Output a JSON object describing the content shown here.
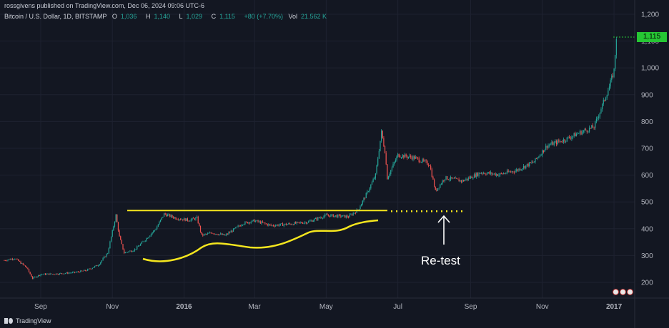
{
  "header": {
    "publisher": "rossgivens published on TradingView.com, Dec 06, 2024 09:06 UTC-6",
    "symbol": "Bitcoin / U.S. Dollar, 1D, BITSTAMP",
    "o_label": "O",
    "o_value": "1,036",
    "h_label": "H",
    "h_value": "1,140",
    "l_label": "L",
    "l_value": "1,029",
    "c_label": "C",
    "c_value": "1,115",
    "change": "+80 (+7.70%)",
    "vol_label": "Vol",
    "vol_value": "21.562 K"
  },
  "branding": {
    "text": "TradingView",
    "icon": "tradingview-logo"
  },
  "colors": {
    "background": "#131722",
    "up": "#26a69a",
    "down": "#ef5350",
    "annotation": "#f5e61e",
    "last_price_bg": "#26c634"
  },
  "chart_data": {
    "type": "candlestick",
    "x_ticks": [
      "Sep",
      "Nov",
      "2016",
      "Mar",
      "May",
      "Jul",
      "Sep",
      "Nov",
      "2017"
    ],
    "y_ticks": [
      "200",
      "300",
      "400",
      "500",
      "600",
      "700",
      "800",
      "900",
      "1,000",
      "1,100",
      "1,200"
    ],
    "ylim": [
      165,
      1215
    ],
    "last_price_label": "1,115",
    "price_path": [
      [
        "2015-08-01",
        282
      ],
      [
        "2015-08-10",
        290
      ],
      [
        "2015-08-20",
        255
      ],
      [
        "2015-08-25",
        215
      ],
      [
        "2015-09-01",
        230
      ],
      [
        "2015-09-15",
        232
      ],
      [
        "2015-09-30",
        237
      ],
      [
        "2015-10-10",
        245
      ],
      [
        "2015-10-20",
        265
      ],
      [
        "2015-10-28",
        310
      ],
      [
        "2015-11-04",
        450
      ],
      [
        "2015-11-07",
        370
      ],
      [
        "2015-11-11",
        310
      ],
      [
        "2015-11-20",
        322
      ],
      [
        "2015-11-28",
        355
      ],
      [
        "2015-12-08",
        400
      ],
      [
        "2015-12-15",
        455
      ],
      [
        "2015-12-25",
        440
      ],
      [
        "2016-01-05",
        432
      ],
      [
        "2016-01-12",
        440
      ],
      [
        "2016-01-16",
        375
      ],
      [
        "2016-01-25",
        385
      ],
      [
        "2016-02-05",
        375
      ],
      [
        "2016-02-20",
        420
      ],
      [
        "2016-03-01",
        430
      ],
      [
        "2016-03-15",
        412
      ],
      [
        "2016-04-01",
        418
      ],
      [
        "2016-04-15",
        425
      ],
      [
        "2016-05-01",
        450
      ],
      [
        "2016-05-20",
        445
      ],
      [
        "2016-05-28",
        470
      ],
      [
        "2016-06-05",
        535
      ],
      [
        "2016-06-12",
        600
      ],
      [
        "2016-06-17",
        760
      ],
      [
        "2016-06-20",
        690
      ],
      [
        "2016-06-22",
        590
      ],
      [
        "2016-07-01",
        675
      ],
      [
        "2016-07-15",
        665
      ],
      [
        "2016-07-28",
        640
      ],
      [
        "2016-08-02",
        540
      ],
      [
        "2016-08-10",
        590
      ],
      [
        "2016-08-25",
        578
      ],
      [
        "2016-09-10",
        610
      ],
      [
        "2016-09-25",
        602
      ],
      [
        "2016-10-10",
        618
      ],
      [
        "2016-10-25",
        650
      ],
      [
        "2016-11-05",
        710
      ],
      [
        "2016-11-20",
        732
      ],
      [
        "2016-12-01",
        755
      ],
      [
        "2016-12-15",
        780
      ],
      [
        "2016-12-22",
        860
      ],
      [
        "2016-12-28",
        930
      ],
      [
        "2017-01-01",
        990
      ],
      [
        "2017-01-03",
        1115
      ]
    ],
    "annotations": {
      "resistance_line": 468,
      "retest_label": "Re-test"
    }
  }
}
